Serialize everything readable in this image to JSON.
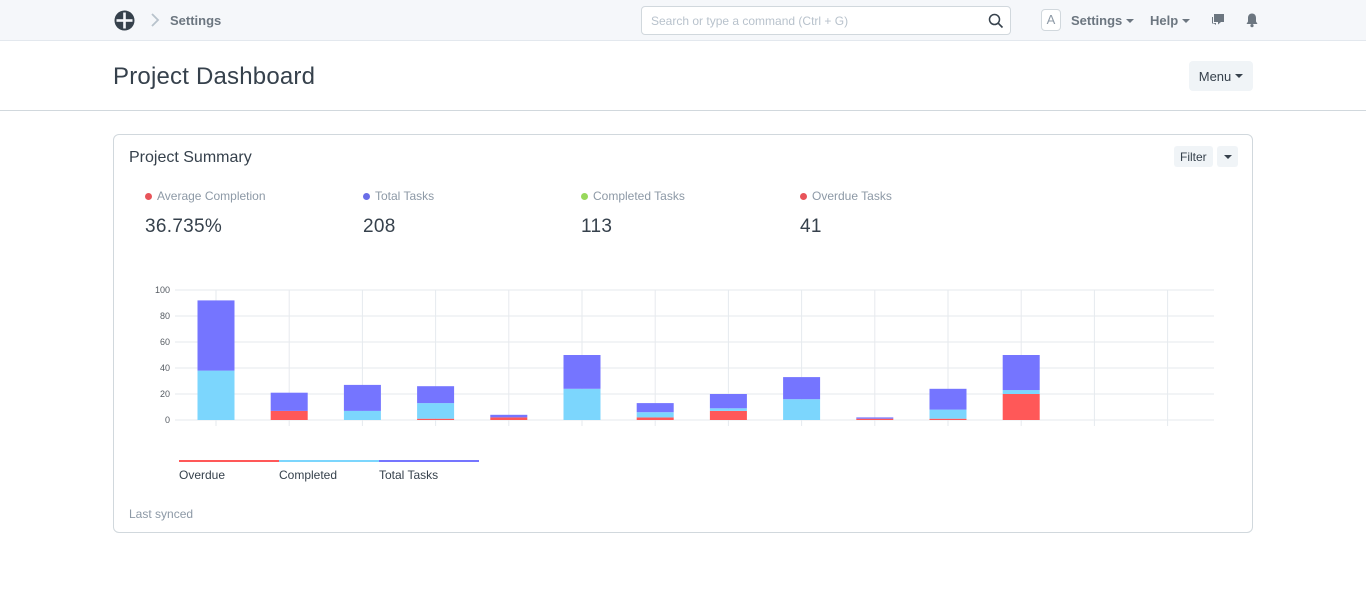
{
  "navbar": {
    "breadcrumb": "Settings",
    "search_placeholder": "Search or type a command (Ctrl + G)",
    "avatar_letter": "A",
    "settings_label": "Settings",
    "help_label": "Help"
  },
  "page": {
    "title": "Project Dashboard",
    "menu_label": "Menu"
  },
  "card": {
    "title": "Project Summary",
    "filter_label": "Filter",
    "last_synced": "Last synced"
  },
  "stats": [
    {
      "label": "Average Completion",
      "value": "36.735%",
      "color": "#e8545a"
    },
    {
      "label": "Total Tasks",
      "value": "208",
      "color": "#6a6ee8"
    },
    {
      "label": "Completed Tasks",
      "value": "113",
      "color": "#98d85b"
    },
    {
      "label": "Overdue Tasks",
      "value": "41",
      "color": "#e8545a"
    }
  ],
  "chart_data": {
    "type": "bar",
    "stacked": true,
    "categories": [
      "",
      "",
      "",
      "",
      "",
      "",
      "",
      "",
      "",
      "",
      "",
      "",
      "",
      ""
    ],
    "series": [
      {
        "name": "Overdue",
        "color": "#ff5858",
        "values": [
          0,
          7,
          0,
          1,
          2,
          0,
          2,
          7,
          0,
          1,
          1,
          20,
          null,
          null
        ]
      },
      {
        "name": "Completed",
        "color": "#7cd6fd",
        "values": [
          38,
          0,
          7,
          12,
          0,
          24,
          4,
          2,
          16,
          0,
          7,
          3,
          null,
          null
        ]
      },
      {
        "name": "Total Tasks",
        "color": "#7575ff",
        "values": [
          54,
          14,
          20,
          13,
          2,
          26,
          7,
          11,
          17,
          1,
          16,
          27,
          null,
          null
        ]
      }
    ],
    "ylim": [
      0,
      100
    ],
    "yticks": [
      0,
      20,
      40,
      60,
      80,
      100
    ],
    "grid": true,
    "legend_position": "bottom-left"
  }
}
